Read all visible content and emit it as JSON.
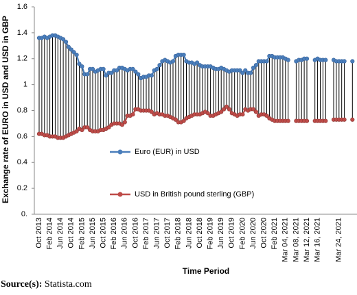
{
  "chart_data": {
    "type": "line",
    "y_label": "Exchange rate of EURO in USD and USD in GBP",
    "x_label": "Time Period",
    "source_label": "Source(s):",
    "source_text": "Statista.com",
    "categories": [
      "Oct 2013",
      null,
      null,
      null,
      "Feb 2014",
      null,
      null,
      null,
      "Jun 2014",
      null,
      null,
      null,
      "Oct 2014",
      null,
      null,
      null,
      "Feb 2015",
      null,
      null,
      null,
      "Jun 2015",
      null,
      null,
      null,
      "Oct 2015",
      null,
      null,
      null,
      "Feb 2016",
      null,
      null,
      null,
      "Jun 2016",
      null,
      null,
      null,
      "Oct 2016",
      null,
      null,
      null,
      "Feb 2017",
      null,
      null,
      null,
      "Jun 2017",
      null,
      null,
      null,
      "Oct 2017",
      null,
      null,
      null,
      "Feb 2018",
      null,
      null,
      null,
      "Jun 2018",
      null,
      null,
      null,
      "Oct 2018",
      null,
      null,
      null,
      "Feb 2019",
      null,
      null,
      null,
      "Jun 2019",
      null,
      null,
      null,
      "Oct 2019",
      null,
      null,
      null,
      "Feb 2020",
      null,
      null,
      null,
      "Jun 2020",
      null,
      null,
      null,
      "Oct 2020",
      null,
      null,
      null,
      "Feb 2021",
      null,
      null,
      null,
      "Mar 04, 2021",
      null,
      null,
      null,
      "Mar 08, 2021",
      null,
      null,
      null,
      "Mar 12, 2021",
      null,
      null,
      null,
      "Mar 16, 2021",
      null,
      null,
      null,
      null,
      null,
      null,
      null,
      "Mar 24, 2021",
      null,
      null,
      null,
      null,
      null
    ],
    "series": [
      {
        "name": "Euro (EUR) in USD",
        "color": "#4a7ebb",
        "values": [
          1.36,
          1.36,
          1.37,
          1.36,
          1.37,
          1.38,
          1.38,
          1.37,
          1.36,
          1.35,
          1.33,
          1.29,
          1.27,
          1.25,
          1.23,
          1.16,
          1.14,
          1.08,
          1.08,
          1.12,
          1.12,
          1.1,
          1.11,
          1.12,
          1.12,
          1.07,
          1.09,
          1.09,
          1.11,
          1.11,
          1.13,
          1.13,
          1.12,
          1.11,
          1.12,
          1.12,
          1.1,
          1.08,
          1.05,
          1.06,
          1.06,
          1.07,
          1.07,
          1.11,
          1.12,
          1.15,
          1.18,
          1.19,
          1.18,
          1.17,
          1.18,
          1.22,
          1.23,
          1.23,
          1.23,
          1.18,
          1.17,
          1.17,
          1.16,
          1.17,
          1.15,
          1.14,
          1.14,
          1.14,
          1.14,
          1.13,
          1.12,
          1.12,
          1.13,
          1.12,
          1.11,
          1.1,
          1.11,
          1.11,
          1.11,
          1.11,
          1.09,
          1.11,
          1.09,
          1.09,
          1.13,
          1.15,
          1.18,
          1.18,
          1.18,
          1.18,
          1.22,
          1.22,
          1.21,
          1.21,
          1.21,
          1.21,
          1.2,
          1.19,
          null,
          null,
          1.18,
          1.19,
          1.19,
          1.2,
          1.2,
          null,
          null,
          1.19,
          1.2,
          1.19,
          1.19,
          1.19,
          null,
          null,
          1.19,
          1.18,
          1.18,
          1.18,
          1.18,
          null,
          null,
          1.18
        ]
      },
      {
        "name": "USD in British pound sterling (GBP)",
        "color": "#be4b48",
        "values": [
          0.62,
          0.62,
          0.61,
          0.61,
          0.6,
          0.6,
          0.6,
          0.59,
          0.59,
          0.59,
          0.6,
          0.61,
          0.62,
          0.63,
          0.64,
          0.66,
          0.65,
          0.67,
          0.67,
          0.65,
          0.64,
          0.64,
          0.64,
          0.65,
          0.65,
          0.66,
          0.67,
          0.69,
          0.7,
          0.7,
          0.7,
          0.69,
          0.71,
          0.76,
          0.76,
          0.77,
          0.81,
          0.81,
          0.8,
          0.8,
          0.8,
          0.8,
          0.79,
          0.77,
          0.78,
          0.77,
          0.77,
          0.76,
          0.76,
          0.75,
          0.74,
          0.73,
          0.71,
          0.71,
          0.72,
          0.74,
          0.75,
          0.76,
          0.77,
          0.77,
          0.77,
          0.78,
          0.79,
          0.78,
          0.76,
          0.76,
          0.77,
          0.78,
          0.79,
          0.81,
          0.83,
          0.81,
          0.78,
          0.77,
          0.76,
          0.77,
          0.77,
          0.81,
          0.8,
          0.81,
          0.81,
          0.79,
          0.76,
          0.77,
          0.77,
          0.76,
          0.74,
          0.73,
          0.72,
          0.72,
          0.72,
          0.72,
          0.72,
          0.72,
          null,
          null,
          0.72,
          0.72,
          0.72,
          0.72,
          0.72,
          null,
          null,
          0.72,
          0.72,
          0.72,
          0.72,
          0.72,
          null,
          null,
          0.73,
          0.73,
          0.73,
          0.73,
          0.73,
          null,
          null,
          0.73
        ]
      }
    ],
    "ylim": [
      0,
      1.6
    ],
    "yticks": [
      {
        "value": 0,
        "label": "0."
      },
      0.2,
      0.4,
      0.6,
      0.8,
      1,
      1.2,
      1.4,
      1.6
    ],
    "hi_lo_lines": true,
    "grid": false
  }
}
